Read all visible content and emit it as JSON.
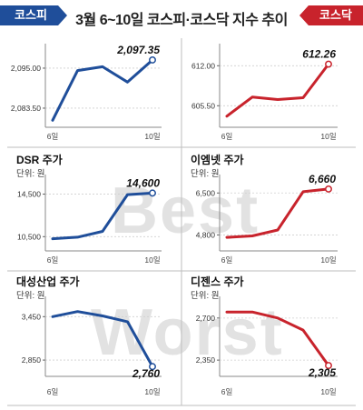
{
  "title": "3월 6~10일 코스피·코스닥 지수 추이",
  "tabs": {
    "left": "코스피",
    "right": "코스닥"
  },
  "watermark": {
    "top": "Best",
    "bottom": "Worst"
  },
  "colors": {
    "blue": "#1f4e9a",
    "red": "#c8232c",
    "grid": "#cfcfcf"
  },
  "chart_data": [
    {
      "type": "line",
      "panel": "kospi",
      "color": "blue",
      "title": "",
      "unit": "",
      "x": [
        "6일",
        "7일",
        "8일",
        "9일",
        "10일"
      ],
      "xticks": [
        "6일",
        "10일"
      ],
      "values": [
        2080.0,
        2094.3,
        2095.4,
        2091.0,
        2097.35
      ],
      "ylim": [
        2078.0,
        2101.0
      ],
      "yticks": [
        "2,095.00",
        "2,083.50"
      ],
      "ytick_values": [
        2095.0,
        2083.5
      ],
      "end_label": "2,097.35"
    },
    {
      "type": "line",
      "panel": "kosdaq",
      "color": "red",
      "title": "",
      "unit": "",
      "x": [
        "6일",
        "7일",
        "8일",
        "9일",
        "10일"
      ],
      "xticks": [
        "6일",
        "10일"
      ],
      "values": [
        603.8,
        606.9,
        606.5,
        606.8,
        612.26
      ],
      "ylim": [
        602.0,
        615.0
      ],
      "yticks": [
        "612.00",
        "605.50"
      ],
      "ytick_values": [
        612.0,
        605.5
      ],
      "end_label": "612.26"
    },
    {
      "type": "line",
      "panel": "dsr",
      "color": "blue",
      "title": "DSR 주가",
      "unit": "단위: 원",
      "x": [
        "6일",
        "7일",
        "8일",
        "9일",
        "10일"
      ],
      "xticks": [
        "6일",
        "10일"
      ],
      "values": [
        10300,
        10450,
        11000,
        14450,
        14600
      ],
      "ylim": [
        9500,
        16000
      ],
      "yticks": [
        "14,500",
        "10,500"
      ],
      "ytick_values": [
        14500,
        10500
      ],
      "end_label": "14,600"
    },
    {
      "type": "line",
      "panel": "emnet",
      "color": "red",
      "title": "이엠넷 주가",
      "unit": "단위: 원",
      "x": [
        "6일",
        "7일",
        "8일",
        "9일",
        "10일"
      ],
      "xticks": [
        "6일",
        "10일"
      ],
      "values": [
        4700,
        4760,
        5000,
        6550,
        6660
      ],
      "ylim": [
        4300,
        7100
      ],
      "yticks": [
        "6,500",
        "4,800"
      ],
      "ytick_values": [
        6500,
        4800
      ],
      "end_label": "6,660"
    },
    {
      "type": "line",
      "panel": "daesung",
      "color": "blue",
      "title": "대성산업 주가",
      "unit": "단위: 원",
      "x": [
        "6일",
        "7일",
        "8일",
        "9일",
        "10일"
      ],
      "xticks": [
        "6일",
        "10일"
      ],
      "values": [
        3450,
        3520,
        3460,
        3380,
        2760
      ],
      "ylim": [
        2650,
        3680
      ],
      "yticks": [
        "3,450",
        "2,850"
      ],
      "ytick_values": [
        3450,
        2850
      ],
      "end_label": "2,760"
    },
    {
      "type": "line",
      "panel": "dijens",
      "color": "red",
      "title": "디젠스 주가",
      "unit": "단위: 원",
      "x": [
        "6일",
        "7일",
        "8일",
        "9일",
        "10일"
      ],
      "xticks": [
        "6일",
        "10일"
      ],
      "values": [
        2750,
        2750,
        2700,
        2600,
        2305
      ],
      "ylim": [
        2230,
        2850
      ],
      "yticks": [
        "2,700",
        "2,350"
      ],
      "ytick_values": [
        2700,
        2350
      ],
      "end_label": "2,305"
    }
  ]
}
